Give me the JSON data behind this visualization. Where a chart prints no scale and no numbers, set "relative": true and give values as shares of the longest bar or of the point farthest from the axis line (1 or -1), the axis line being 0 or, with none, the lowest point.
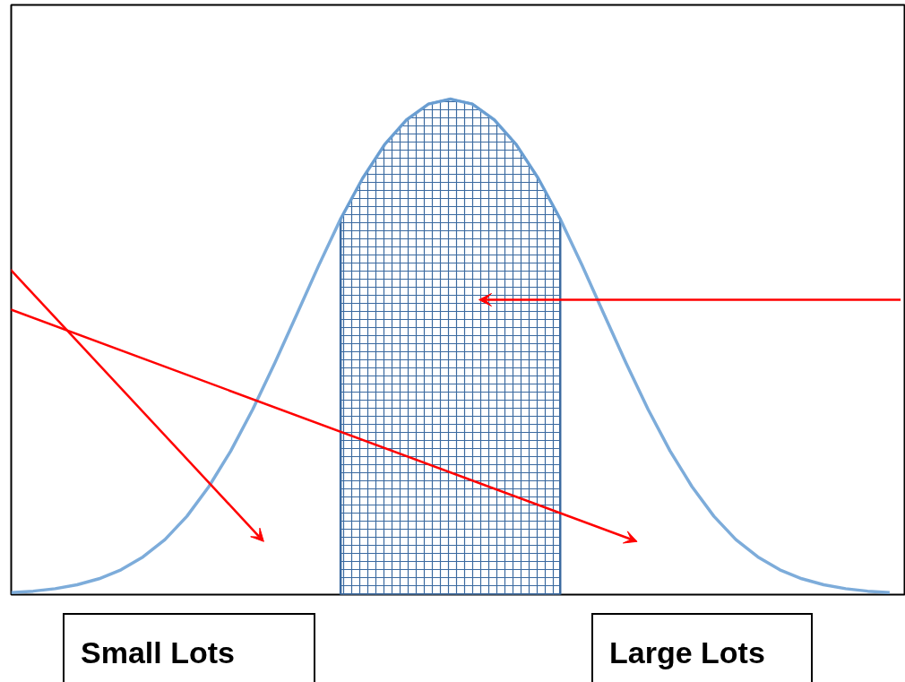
{
  "chart_data": {
    "type": "line",
    "relative": true,
    "categories": [
      null,
      null,
      null,
      null,
      null,
      null,
      null,
      null,
      null,
      null,
      null,
      null,
      null,
      null,
      null,
      null,
      null,
      null,
      null,
      null,
      null,
      null,
      null,
      null,
      null,
      null,
      null,
      null,
      null,
      null,
      null,
      null,
      null,
      null,
      null,
      null,
      null,
      null,
      null,
      null,
      null
    ],
    "series": [
      {
        "color": "#6fa3d6",
        "values": [
          0.004,
          0.007,
          0.012,
          0.02,
          0.032,
          0.05,
          0.076,
          0.111,
          0.158,
          0.218,
          0.29,
          0.374,
          0.467,
          0.565,
          0.664,
          0.758,
          0.84,
          0.908,
          0.958,
          0.99,
          1.0,
          0.99,
          0.958,
          0.908,
          0.84,
          0.758,
          0.664,
          0.565,
          0.467,
          0.374,
          0.29,
          0.218,
          0.158,
          0.111,
          0.076,
          0.05,
          0.032,
          0.02,
          0.012,
          0.007,
          0.004
        ]
      },
      {
        "type": "area",
        "color": "#3b6aa0",
        "values": [
          null,
          null,
          null,
          null,
          null,
          null,
          null,
          null,
          null,
          null,
          null,
          null,
          null,
          null,
          null,
          0.758,
          0.84,
          0.908,
          0.958,
          0.99,
          1.0,
          0.99,
          0.958,
          0.908,
          0.84,
          0.758,
          null,
          null,
          null,
          null,
          null,
          null,
          null,
          null,
          null,
          null,
          null,
          null,
          null,
          null,
          null
        ]
      }
    ],
    "annotations": [
      "Small Lots",
      "Large Lots"
    ],
    "grid": false,
    "tick_labels": false
  }
}
